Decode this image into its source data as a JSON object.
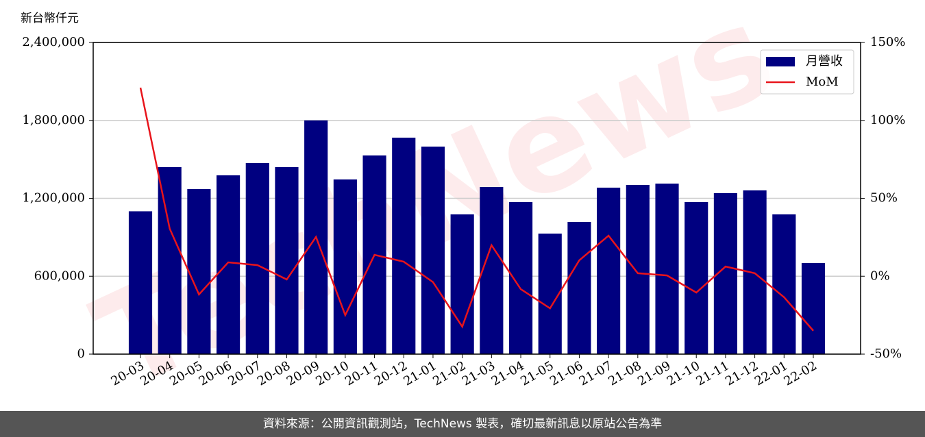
{
  "chart_data": {
    "type": "bar",
    "y_label": "新台幣仟元",
    "watermark": "TechNews",
    "categories": [
      "20-03",
      "20-04",
      "20-05",
      "20-06",
      "20-07",
      "20-08",
      "20-09",
      "20-10",
      "20-11",
      "20-12",
      "21-01",
      "21-02",
      "21-03",
      "21-04",
      "21-05",
      "21-06",
      "21-07",
      "21-08",
      "21-09",
      "21-10",
      "21-11",
      "21-12",
      "22-01",
      "22-02"
    ],
    "series": [
      {
        "name": "月營收",
        "color": "#000080",
        "values": [
          1100000,
          1440000,
          1271000,
          1377000,
          1472000,
          1440000,
          1800000,
          1345000,
          1530000,
          1667000,
          1598000,
          1076000,
          1287000,
          1171000,
          928000,
          1018000,
          1282000,
          1303000,
          1313000,
          1171000,
          1240000,
          1261000,
          1076000,
          702000
        ]
      },
      {
        "name": "MoM",
        "color": "#e8141b",
        "type": "line",
        "axis": "y2",
        "values": [
          121,
          30.5,
          -11.7,
          8.9,
          7.1,
          -2.1,
          25.2,
          -25,
          13.7,
          9.3,
          -3.8,
          -32.4,
          19.9,
          -8.3,
          -20.6,
          10.2,
          26,
          1.9,
          0.5,
          -10.5,
          6.2,
          1.9,
          -13.5,
          -35
        ]
      }
    ],
    "ylim": [
      0,
      2400000
    ],
    "yticks": [
      0,
      {
        "value": 600000,
        "label": "600,000"
      },
      {
        "value": 1200000,
        "label": "1,200,000"
      },
      {
        "value": 1800000,
        "label": "1,800,000"
      },
      {
        "value": 2400000,
        "label": "2,400,000"
      }
    ],
    "y2lim": [
      -50,
      150
    ],
    "y2ticks": [
      {
        "value": -50,
        "label": "-50%"
      },
      {
        "value": 0,
        "label": "0%"
      },
      {
        "value": 50,
        "label": "50%"
      },
      {
        "value": 100,
        "label": "100%"
      },
      {
        "value": 150,
        "label": "150%"
      }
    ],
    "grid": true,
    "legend": "upper right"
  },
  "footer": "資料來源：公開資訊觀測站，TechNews 製表，確切最新訊息以原站公告為準"
}
